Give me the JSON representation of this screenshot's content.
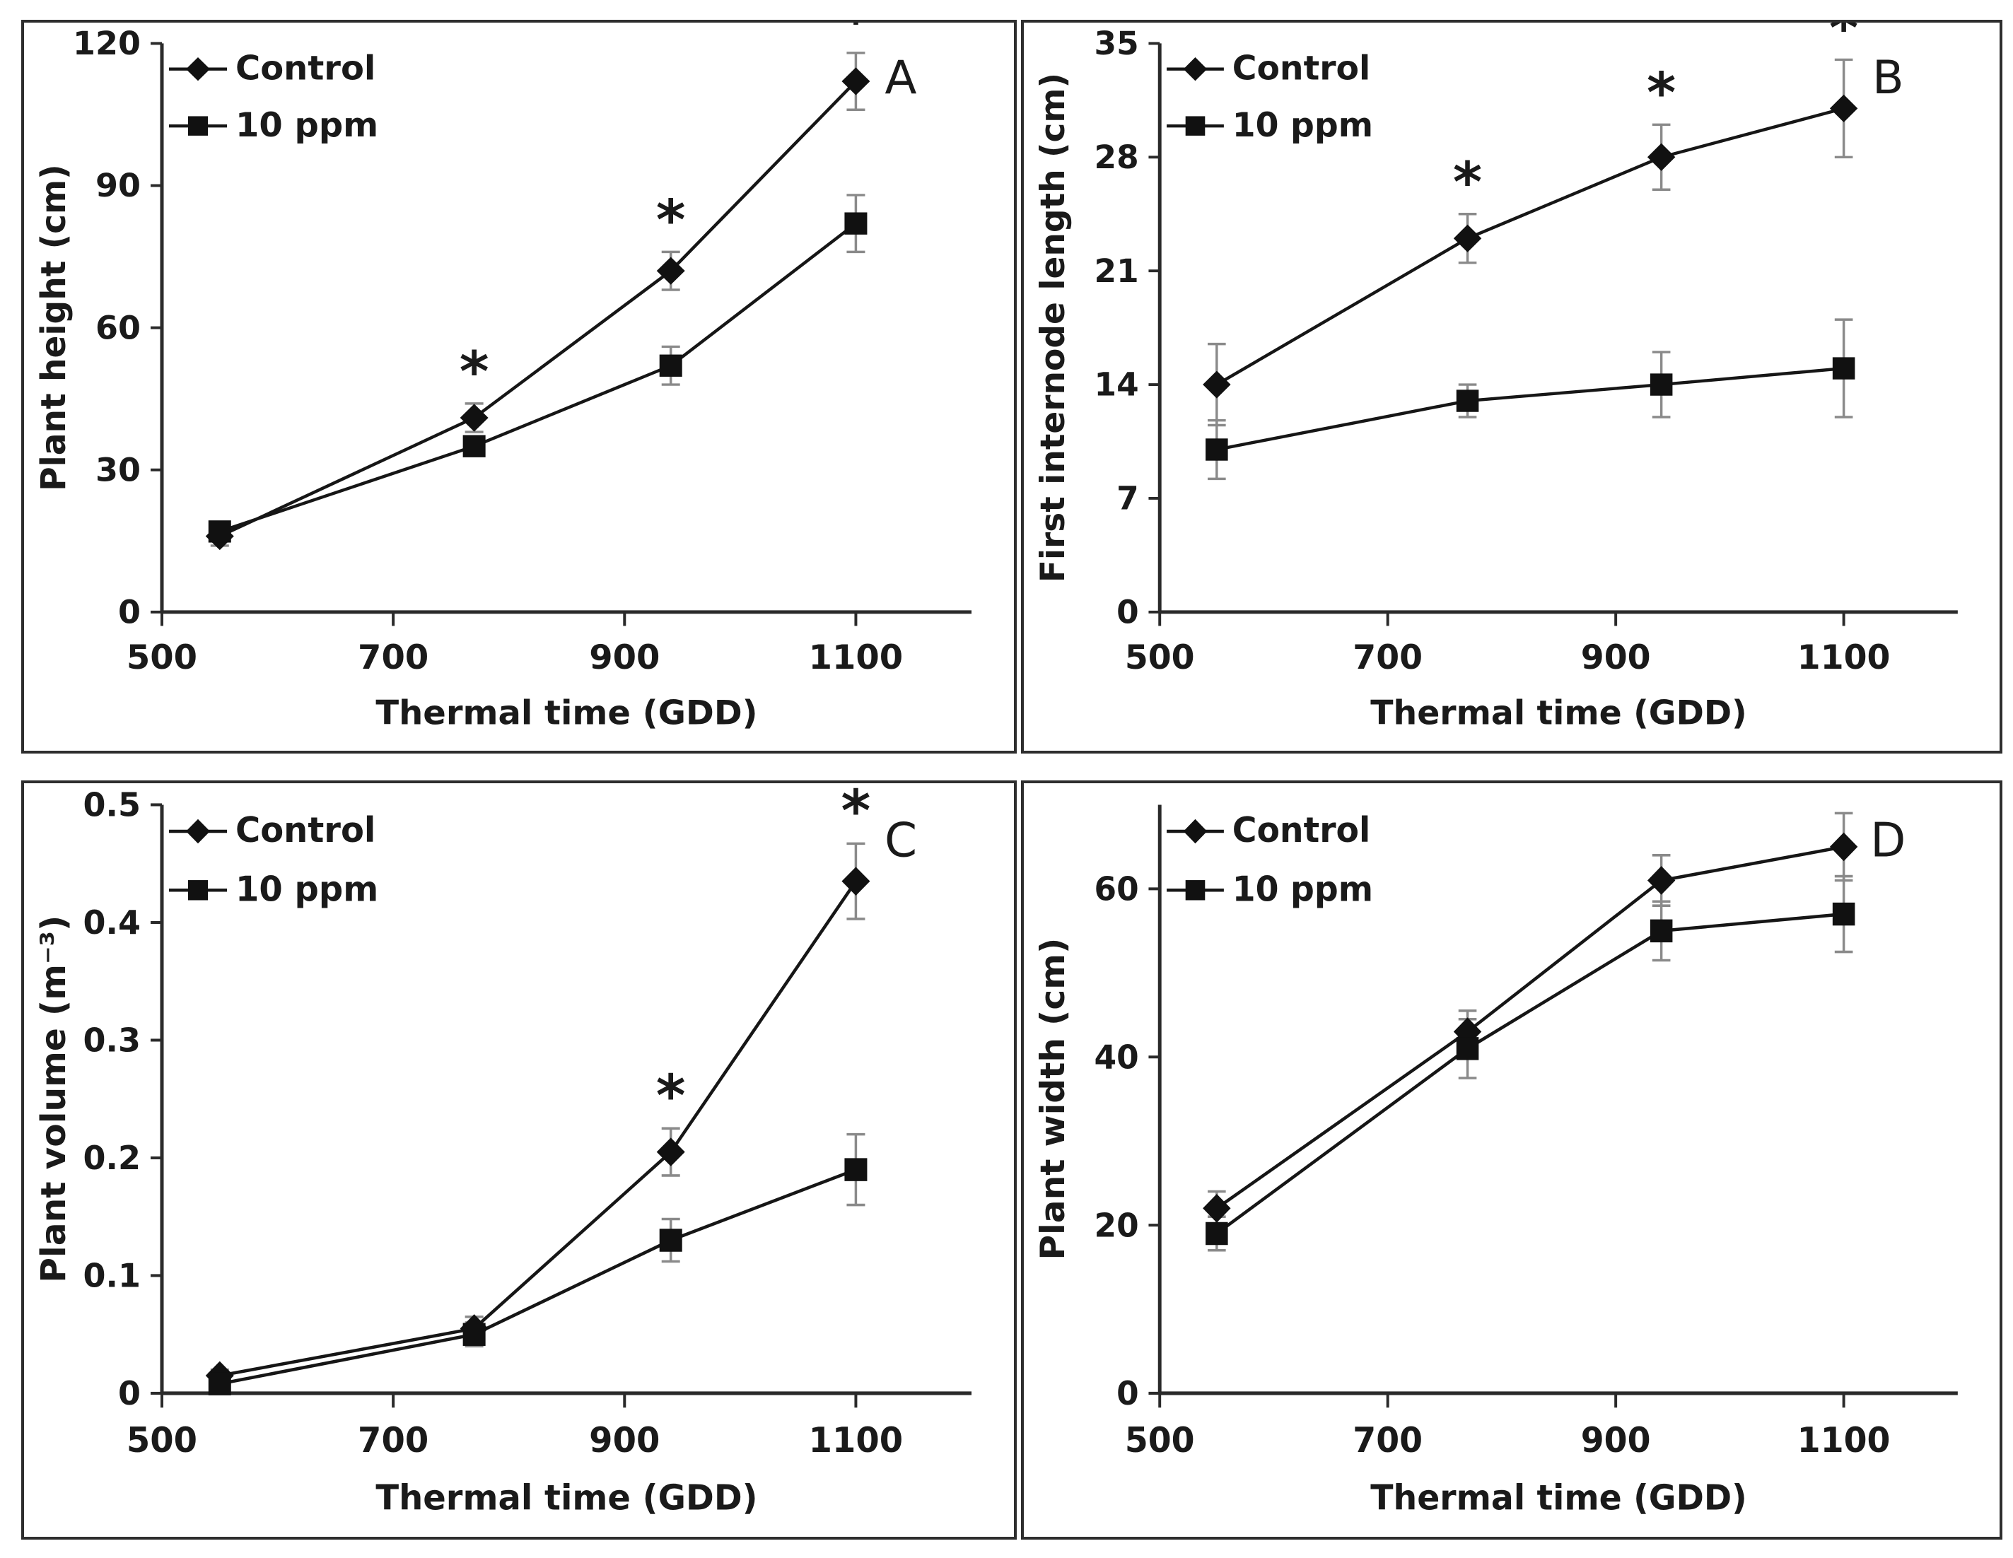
{
  "figure": {
    "background": "#ffffff",
    "panel_border_color": "#2e2e2e",
    "axis_color": "#2a2a2a",
    "line_color": "#161616",
    "marker_color": "#111111",
    "error_bar_color": "#8a8a8a",
    "text_color": "#1a1a1a",
    "significance_symbol": "*"
  },
  "legend": {
    "control_label": "Control",
    "treatment_label": "10 ppm"
  },
  "chart_data": [
    {
      "panel_label": "A",
      "type": "line",
      "xlabel": "Thermal time (GDD)",
      "ylabel": "Plant height (cm)",
      "xlim": [
        500,
        1200
      ],
      "ylim": [
        0,
        120
      ],
      "xticks": [
        500,
        700,
        900,
        1100
      ],
      "yticks": [
        0,
        30,
        60,
        90,
        120
      ],
      "x": [
        550,
        770,
        940,
        1100
      ],
      "legend_position": "top-left",
      "grid": false,
      "series": [
        {
          "name": "Control",
          "marker": "diamond",
          "values": [
            16,
            41,
            72,
            112
          ],
          "errors": [
            2,
            3,
            4,
            6
          ],
          "significant": [
            false,
            true,
            true,
            true
          ]
        },
        {
          "name": "10 ppm",
          "marker": "square",
          "values": [
            17,
            35,
            52,
            82
          ],
          "errors": [
            2,
            2,
            4,
            6
          ],
          "significant": [
            false,
            false,
            false,
            false
          ]
        }
      ]
    },
    {
      "panel_label": "B",
      "type": "line",
      "xlabel": "Thermal time (GDD)",
      "ylabel": "First internode length (cm)",
      "xlim": [
        500,
        1200
      ],
      "ylim": [
        0,
        35
      ],
      "xticks": [
        500,
        700,
        900,
        1100
      ],
      "yticks": [
        0,
        7,
        14,
        21,
        28,
        35
      ],
      "x": [
        550,
        770,
        940,
        1100
      ],
      "legend_position": "top-left",
      "grid": false,
      "series": [
        {
          "name": "Control",
          "marker": "diamond",
          "values": [
            14,
            23,
            28,
            31
          ],
          "errors": [
            2.5,
            1.5,
            2,
            3
          ],
          "significant": [
            false,
            true,
            true,
            true
          ]
        },
        {
          "name": "10 ppm",
          "marker": "square",
          "values": [
            10,
            13,
            14,
            15
          ],
          "errors": [
            1.8,
            1,
            2,
            3
          ],
          "significant": [
            false,
            false,
            false,
            false
          ]
        }
      ]
    },
    {
      "panel_label": "C",
      "type": "line",
      "xlabel": "Thermal time (GDD)",
      "ylabel": "Plant volume (m⁻³)",
      "xlim": [
        500,
        1200
      ],
      "ylim": [
        0,
        0.5
      ],
      "xticks": [
        500,
        700,
        900,
        1100
      ],
      "yticks": [
        0,
        0.1,
        0.2,
        0.3,
        0.4,
        0.5
      ],
      "x": [
        550,
        770,
        940,
        1100
      ],
      "legend_position": "top-left",
      "grid": false,
      "series": [
        {
          "name": "Control",
          "marker": "diamond",
          "values": [
            0.015,
            0.055,
            0.205,
            0.435
          ],
          "errors": [
            0.005,
            0.01,
            0.02,
            0.032
          ],
          "significant": [
            false,
            false,
            true,
            true
          ]
        },
        {
          "name": "10 ppm",
          "marker": "square",
          "values": [
            0.008,
            0.05,
            0.13,
            0.19
          ],
          "errors": [
            0.004,
            0.01,
            0.018,
            0.03
          ],
          "significant": [
            false,
            false,
            false,
            false
          ]
        }
      ]
    },
    {
      "panel_label": "D",
      "type": "line",
      "xlabel": "Thermal time (GDD)",
      "ylabel": "Plant width (cm)",
      "xlim": [
        500,
        1200
      ],
      "ylim": [
        0,
        70
      ],
      "xticks": [
        500,
        700,
        900,
        1100
      ],
      "yticks": [
        0,
        20,
        40,
        60
      ],
      "x": [
        550,
        770,
        940,
        1100
      ],
      "legend_position": "top-left",
      "grid": false,
      "series": [
        {
          "name": "Control",
          "marker": "diamond",
          "values": [
            22,
            43,
            61,
            65
          ],
          "errors": [
            2,
            2.5,
            3,
            4
          ],
          "significant": [
            false,
            false,
            false,
            false
          ]
        },
        {
          "name": "10 ppm",
          "marker": "square",
          "values": [
            19,
            41,
            55,
            57
          ],
          "errors": [
            2,
            3.5,
            3.5,
            4.5
          ],
          "significant": [
            false,
            false,
            false,
            false
          ]
        }
      ]
    }
  ]
}
